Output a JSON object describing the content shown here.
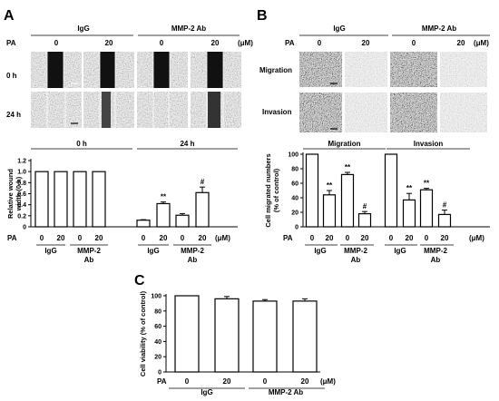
{
  "panels": {
    "A": {
      "letter": "A",
      "header": {
        "igg": "IgG",
        "mmp": "MMP-2 Ab",
        "pa": "PA",
        "doses": [
          "0",
          "20",
          "0",
          "20"
        ],
        "unit": "(μM)"
      },
      "rows": [
        "0 h",
        "24 h"
      ]
    },
    "B": {
      "letter": "B",
      "header": {
        "igg": "IgG",
        "mmp": "MMP-2 Ab",
        "pa": "PA",
        "doses": [
          "0",
          "20",
          "0",
          "20"
        ],
        "unit": "(μM)"
      },
      "rows": [
        "Migration",
        "Invasion"
      ]
    },
    "C": {
      "letter": "C"
    }
  },
  "chart_data": [
    {
      "id": "A",
      "type": "bar",
      "ylabel": "Relative wound width (0 h)",
      "ylim": [
        0,
        1.2
      ],
      "yticks": [
        "0",
        "0.2",
        "0.4",
        "0.6",
        "0.8",
        "1.0",
        "1.2"
      ],
      "groups": [
        {
          "label": "0 h",
          "values": [
            1.0,
            1.0,
            1.0,
            1.0
          ],
          "errors": [
            0,
            0,
            0,
            0
          ],
          "marks": [
            "",
            "",
            "",
            ""
          ]
        },
        {
          "label": "24 h",
          "values": [
            0.12,
            0.42,
            0.21,
            0.62
          ],
          "errors": [
            0.01,
            0.03,
            0.03,
            0.1
          ],
          "marks": [
            "",
            "**",
            "",
            "#"
          ]
        }
      ],
      "pa_label": "PA",
      "doses": [
        "0",
        "20",
        "0",
        "20"
      ],
      "unit": "(μM)",
      "treatments": [
        "IgG",
        "MMP-2",
        "Ab"
      ]
    },
    {
      "id": "B",
      "type": "bar",
      "ylabel": "Cell migrated numbers (% of control)",
      "ylim": [
        0,
        100
      ],
      "yticks": [
        "0",
        "20",
        "40",
        "60",
        "80",
        "100"
      ],
      "groups": [
        {
          "label": "Migration",
          "values": [
            100,
            44,
            72,
            18
          ],
          "errors": [
            0,
            6,
            3,
            3
          ],
          "marks": [
            "",
            "**",
            "**",
            "#"
          ]
        },
        {
          "label": "Invasion",
          "values": [
            100,
            37,
            51,
            17
          ],
          "errors": [
            0,
            9,
            2,
            6
          ],
          "marks": [
            "",
            "**",
            "**",
            "#"
          ]
        }
      ],
      "pa_label": "PA",
      "doses": [
        "0",
        "20",
        "0",
        "20"
      ],
      "unit": "(μM)",
      "treatments": [
        "IgG",
        "MMP-2",
        "Ab"
      ]
    },
    {
      "id": "C",
      "type": "bar",
      "ylabel": "Cell viability (% of control)",
      "ylim": [
        0,
        100
      ],
      "yticks": [
        "0",
        "20",
        "40",
        "60",
        "80",
        "100"
      ],
      "values": [
        100,
        96,
        93,
        93
      ],
      "errors": [
        0,
        3,
        2,
        3
      ],
      "pa_label": "PA",
      "doses": [
        "0",
        "20",
        "0",
        "20"
      ],
      "unit": "(μM)",
      "treatments": [
        "IgG",
        "MMP-2 Ab"
      ]
    }
  ]
}
